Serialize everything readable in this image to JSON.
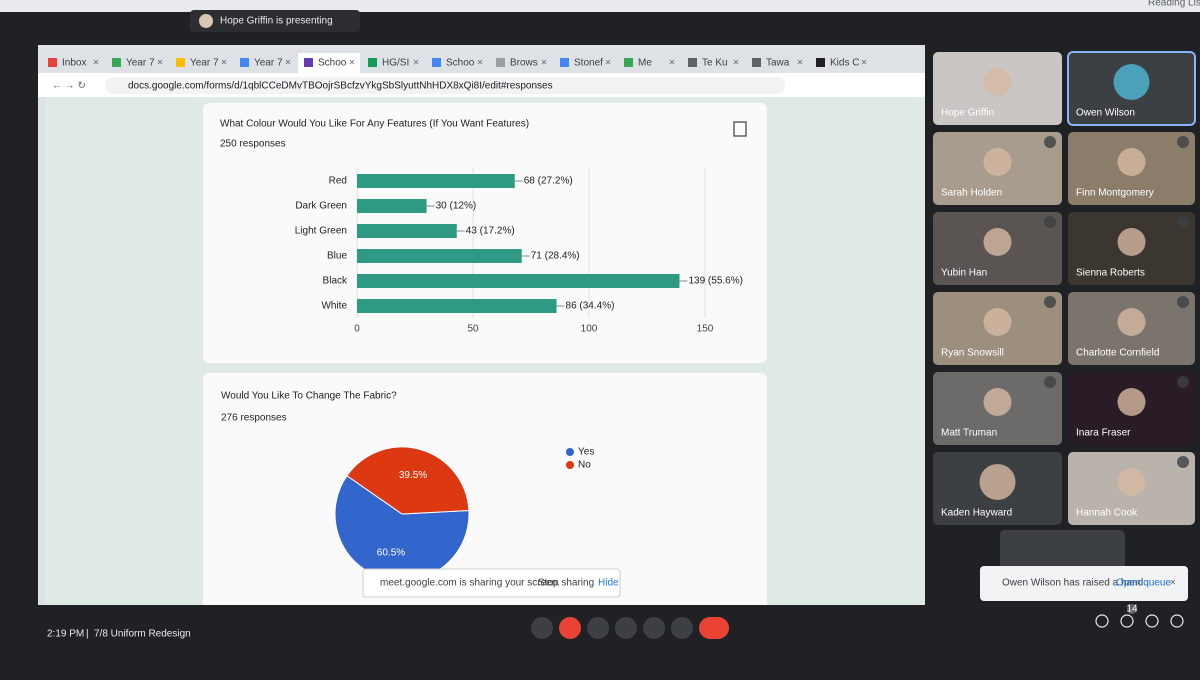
{
  "top_bar": {
    "presenter": "Hope Griffin is presenting",
    "reading_list": "Reading List"
  },
  "browser": {
    "tabs": [
      "Inbox",
      "Year 7",
      "Year 7",
      "Year 7",
      "Schoo",
      "HG/SI",
      "Schoo",
      "Brows",
      "Stonef",
      "Me",
      "Te Ku",
      "Tawa",
      "Kids C"
    ],
    "url": "docs.google.com/forms/d/1qblCCeDMvTBOojrSBcfzvYkgSbSlyuttNhHDX8xQi8I/edit#responses"
  },
  "chart_data": [
    {
      "type": "bar",
      "orientation": "horizontal",
      "title": "What Colour Would You Like For Any Features (If You Want Features)",
      "subtitle": "250 responses",
      "categories": [
        "Red",
        "Dark Green",
        "Light Green",
        "Blue",
        "Black",
        "White"
      ],
      "values": [
        68,
        30,
        43,
        71,
        139,
        86
      ],
      "value_labels": [
        "68 (27.2%)",
        "30 (12%)",
        "43 (17.2%)",
        "71 (28.4%)",
        "139 (55.6%)",
        "86 (34.4%)"
      ],
      "color": "#2e9a84",
      "xlim": [
        0,
        150
      ],
      "xticks": [
        0,
        50,
        100,
        150
      ],
      "grid": true
    },
    {
      "type": "pie",
      "title": "Would You Like To Change The Fabric?",
      "subtitle": "276 responses",
      "categories": [
        "Yes",
        "No"
      ],
      "values": [
        60.5,
        39.5
      ],
      "value_labels": [
        "60.5%",
        "39.5%"
      ],
      "colors": [
        "#3366cc",
        "#dc3912"
      ],
      "legend": "right"
    }
  ],
  "share_bar": {
    "message": "meet.google.com is sharing your screen.",
    "stop": "Stop sharing",
    "hide": "Hide"
  },
  "participants": [
    "Hope Griffin",
    "Owen Wilson",
    "Sarah Holden",
    "Finn Montgomery",
    "Yubin Han",
    "Sienna Roberts",
    "Ryan Snowsill",
    "Charlotte Cornfield",
    "Matt Truman",
    "Inara Fraser",
    "Kaden Hayward",
    "Hannah Cook"
  ],
  "notification": {
    "text": "Owen Wilson has raised a hand",
    "action": "Open queue"
  },
  "bottom_bar": {
    "time": "2:19 PM",
    "separator": "|",
    "meeting": "7/8 Uniform Redesign",
    "people_count": 14
  }
}
